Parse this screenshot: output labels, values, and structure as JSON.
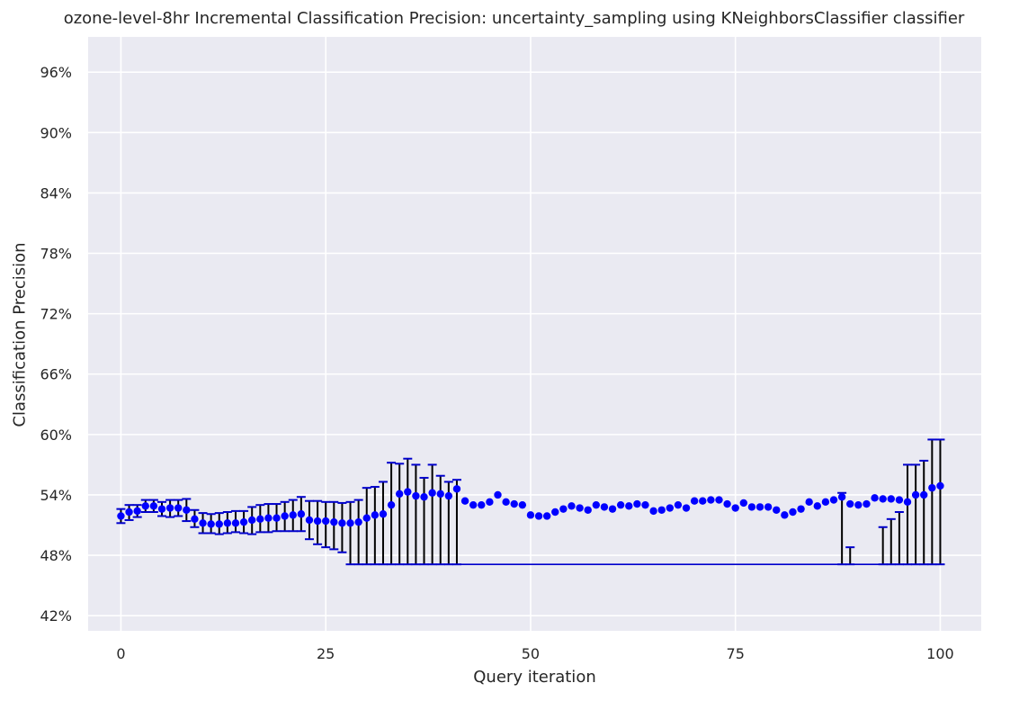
{
  "chart_data": {
    "type": "scatter",
    "title": "ozone-level-8hr Incremental Classification Precision: uncertainty_sampling using KNeighborsClassifier classifier",
    "xlabel": "Query iteration",
    "ylabel": "Classification Precision",
    "xlim": [
      -4,
      105
    ],
    "ylim": [
      40.5,
      99.5
    ],
    "x_ticks": [
      0,
      25,
      50,
      75,
      100
    ],
    "y_ticks": [
      42,
      48,
      54,
      60,
      66,
      72,
      78,
      84,
      90,
      96
    ],
    "y_tick_labels": [
      "42%",
      "48%",
      "54%",
      "60%",
      "66%",
      "72%",
      "78%",
      "84%",
      "90%",
      "96%"
    ],
    "grid": true,
    "legend": "none",
    "colors": {
      "background": "#eaeaf2",
      "grid": "#ffffff",
      "point": "#0000ff",
      "errorbar": "#000000",
      "cap": "#0000cc"
    },
    "x": [
      0,
      1,
      2,
      3,
      4,
      5,
      6,
      7,
      8,
      9,
      10,
      11,
      12,
      13,
      14,
      15,
      16,
      17,
      18,
      19,
      20,
      21,
      22,
      23,
      24,
      25,
      26,
      27,
      28,
      29,
      30,
      31,
      32,
      33,
      34,
      35,
      36,
      37,
      38,
      39,
      40,
      41,
      42,
      43,
      44,
      45,
      46,
      47,
      48,
      49,
      50,
      51,
      52,
      53,
      54,
      55,
      56,
      57,
      58,
      59,
      60,
      61,
      62,
      63,
      64,
      65,
      66,
      67,
      68,
      69,
      70,
      71,
      72,
      73,
      74,
      75,
      76,
      77,
      78,
      79,
      80,
      81,
      82,
      83,
      84,
      85,
      86,
      87,
      88,
      89,
      90,
      91,
      92,
      93,
      94,
      95,
      96,
      97,
      98,
      99,
      100
    ],
    "y": [
      51.9,
      52.3,
      52.4,
      52.9,
      52.9,
      52.6,
      52.7,
      52.7,
      52.5,
      51.6,
      51.2,
      51.1,
      51.1,
      51.2,
      51.2,
      51.3,
      51.5,
      51.6,
      51.7,
      51.7,
      51.9,
      52.0,
      52.1,
      51.5,
      51.4,
      51.4,
      51.3,
      51.2,
      51.2,
      51.3,
      51.7,
      52.0,
      52.1,
      53.0,
      54.1,
      54.3,
      53.9,
      53.8,
      54.2,
      54.1,
      53.9,
      54.6,
      53.4,
      53.0,
      53.0,
      53.3,
      54.0,
      53.3,
      53.1,
      53.0,
      52.0,
      51.9,
      51.9,
      52.3,
      52.6,
      52.9,
      52.7,
      52.5,
      53.0,
      52.8,
      52.6,
      53.0,
      52.9,
      53.1,
      53.0,
      52.4,
      52.5,
      52.7,
      53.0,
      52.7,
      53.4,
      53.4,
      53.5,
      53.5,
      53.1,
      52.7,
      53.2,
      52.8,
      52.8,
      52.8,
      52.5,
      52.0,
      52.3,
      52.6,
      53.3,
      52.9,
      53.3,
      53.5,
      53.8,
      53.1,
      53.0,
      53.1,
      53.7,
      53.6,
      53.6,
      53.5,
      53.3,
      54.0,
      54.0,
      54.7,
      54.9
    ],
    "error_low": [
      51.2,
      51.5,
      51.8,
      52.3,
      52.3,
      51.9,
      51.8,
      51.9,
      51.4,
      50.8,
      50.2,
      50.2,
      50.1,
      50.2,
      50.3,
      50.2,
      50.1,
      50.3,
      50.3,
      50.4,
      50.4,
      50.4,
      50.4,
      49.6,
      49.1,
      48.8,
      48.6,
      48.3,
      47.1,
      47.1,
      47.1,
      47.1,
      47.1,
      47.1,
      47.1,
      47.1,
      47.1,
      47.1,
      47.1,
      47.1,
      47.1,
      47.1,
      null,
      null,
      null,
      null,
      null,
      null,
      null,
      null,
      null,
      null,
      null,
      null,
      null,
      null,
      null,
      null,
      null,
      null,
      null,
      null,
      null,
      null,
      null,
      null,
      null,
      null,
      null,
      null,
      null,
      null,
      null,
      null,
      null,
      null,
      null,
      null,
      null,
      null,
      null,
      null,
      null,
      null,
      null,
      null,
      null,
      null,
      47.1,
      47.1,
      null,
      null,
      null,
      47.1,
      47.1,
      47.1,
      47.1,
      47.1,
      47.1,
      47.1,
      47.1
    ],
    "error_high": [
      52.6,
      53.0,
      53.0,
      53.5,
      53.5,
      53.3,
      53.5,
      53.5,
      53.6,
      52.5,
      52.2,
      52.1,
      52.2,
      52.3,
      52.4,
      52.4,
      52.8,
      53.0,
      53.1,
      53.1,
      53.3,
      53.5,
      53.8,
      53.4,
      53.4,
      53.3,
      53.3,
      53.2,
      53.3,
      53.5,
      54.7,
      54.8,
      55.3,
      57.2,
      57.1,
      57.6,
      57.0,
      55.7,
      57.0,
      55.9,
      55.3,
      55.5,
      null,
      null,
      null,
      null,
      null,
      null,
      null,
      null,
      null,
      null,
      null,
      null,
      null,
      null,
      null,
      null,
      null,
      null,
      null,
      null,
      null,
      null,
      null,
      null,
      null,
      null,
      null,
      null,
      null,
      null,
      null,
      null,
      null,
      null,
      null,
      null,
      null,
      null,
      null,
      null,
      null,
      null,
      null,
      null,
      null,
      null,
      54.2,
      48.8,
      null,
      null,
      null,
      50.8,
      51.6,
      52.3,
      57.0,
      57.0,
      57.4,
      59.5,
      59.5
    ]
  }
}
